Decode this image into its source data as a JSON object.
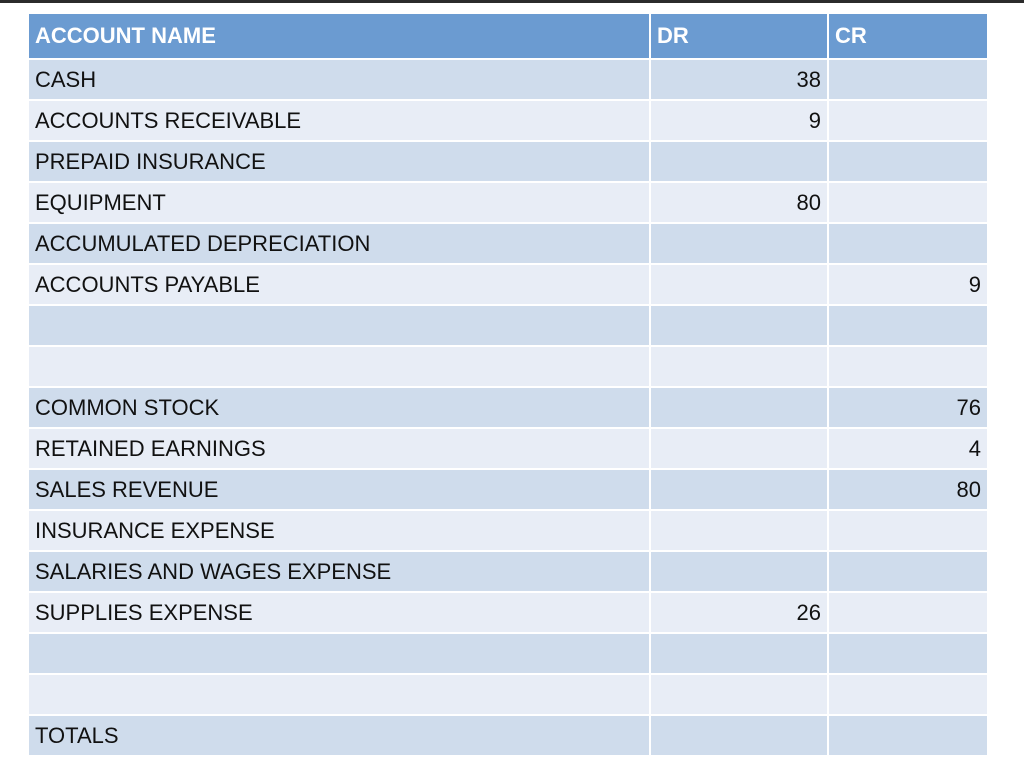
{
  "table": {
    "headers": {
      "account": "ACCOUNT NAME",
      "dr": "DR",
      "cr": "CR"
    },
    "rows": [
      {
        "name": "CASH",
        "dr": "38",
        "cr": ""
      },
      {
        "name": "ACCOUNTS RECEIVABLE",
        "dr": "9",
        "cr": ""
      },
      {
        "name": "PREPAID INSURANCE",
        "dr": "",
        "cr": ""
      },
      {
        "name": "EQUIPMENT",
        "dr": "80",
        "cr": ""
      },
      {
        "name": "ACCUMULATED DEPRECIATION",
        "dr": "",
        "cr": ""
      },
      {
        "name": "ACCOUNTS PAYABLE",
        "dr": "",
        "cr": "9"
      },
      {
        "name": "",
        "dr": "",
        "cr": ""
      },
      {
        "name": "",
        "dr": "",
        "cr": ""
      },
      {
        "name": "COMMON STOCK",
        "dr": "",
        "cr": "76"
      },
      {
        "name": "RETAINED EARNINGS",
        "dr": "",
        "cr": "4"
      },
      {
        "name": "SALES REVENUE",
        "dr": "",
        "cr": "80"
      },
      {
        "name": "INSURANCE EXPENSE",
        "dr": "",
        "cr": ""
      },
      {
        "name": "SALARIES AND WAGES EXPENSE",
        "dr": "",
        "cr": ""
      },
      {
        "name": "SUPPLIES EXPENSE",
        "dr": "26",
        "cr": ""
      },
      {
        "name": "",
        "dr": "",
        "cr": ""
      },
      {
        "name": "",
        "dr": "",
        "cr": ""
      },
      {
        "name": "TOTALS",
        "dr": "",
        "cr": ""
      }
    ]
  },
  "colors": {
    "header_bg": "#6b9bd1",
    "row_dark": "#cfdcec",
    "row_light": "#e8edf6",
    "text": "#111111"
  }
}
